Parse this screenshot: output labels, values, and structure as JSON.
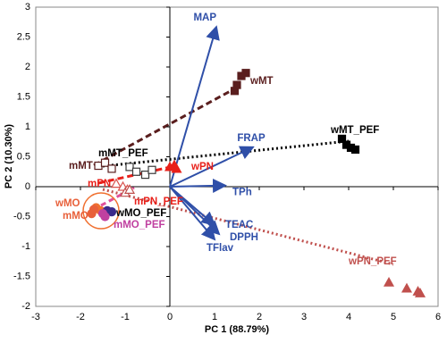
{
  "chart_data": {
    "type": "biplot",
    "x_label": "PC 1 (88.79%)",
    "y_label": "PC 2 (10.30%)",
    "xlim": [
      -3,
      6
    ],
    "xticks": [
      -3,
      -2,
      -1,
      0,
      1,
      2,
      3,
      4,
      5,
      6
    ],
    "ylim": [
      -2,
      3
    ],
    "yticks": [
      -2,
      -1.5,
      -1,
      -0.5,
      0,
      0.5,
      1,
      1.5,
      2,
      2.5,
      3
    ],
    "loading_color": "#2f4fa8",
    "loadings": [
      {
        "name": "MAP",
        "x": 1.04,
        "y": 2.67
      },
      {
        "name": "FRAP",
        "x": 1.86,
        "y": 0.66
      },
      {
        "name": "TPh",
        "x": 1.24,
        "y": 0.02
      },
      {
        "name": "TEAC",
        "x": 1.0,
        "y": -0.64
      },
      {
        "name": "DPPH",
        "x": 1.1,
        "y": -0.79
      },
      {
        "name": "TFlav",
        "x": 1.0,
        "y": -0.88
      }
    ],
    "series": [
      {
        "name": "mMT",
        "color": "#5a1e1e",
        "marker": "square",
        "filled": false,
        "x": [
          -1.6,
          -1.45,
          -1.3
        ],
        "y": [
          0.35,
          0.4,
          0.3
        ]
      },
      {
        "name": "mMT_PEF",
        "color": "#3a3a3a",
        "marker": "square",
        "filled": false,
        "x": [
          -0.9,
          -0.75,
          -0.55,
          -0.4
        ],
        "y": [
          0.33,
          0.25,
          0.2,
          0.28
        ]
      },
      {
        "name": "wMT",
        "color": "#5a1e1e",
        "marker": "square",
        "filled": true,
        "x": [
          1.45,
          1.5,
          1.6,
          1.7
        ],
        "y": [
          1.6,
          1.7,
          1.85,
          1.9
        ]
      },
      {
        "name": "wMT_PEF",
        "color": "#000000",
        "marker": "square",
        "filled": true,
        "x": [
          3.85,
          3.95,
          4.05,
          4.15
        ],
        "y": [
          0.8,
          0.7,
          0.65,
          0.62
        ]
      },
      {
        "name": "mPN",
        "color": "#d9534f",
        "marker": "triangle",
        "filled": false,
        "x": [
          -1.2,
          -1.05,
          -0.95
        ],
        "y": [
          0.05,
          0.0,
          -0.05
        ]
      },
      {
        "name": "wPN",
        "color": "#e8201a",
        "marker": "triangle",
        "filled": true,
        "x": [
          0.0,
          0.1,
          0.15
        ],
        "y": [
          0.33,
          0.36,
          0.3
        ]
      },
      {
        "name": "mPN_PEF",
        "color": "#c0504d",
        "marker": "triangle",
        "filled": false,
        "x": [
          -1.0,
          -0.9
        ],
        "y": [
          -0.1,
          -0.05
        ]
      },
      {
        "name": "wPN_PEF",
        "color": "#c0504d",
        "marker": "triangle",
        "filled": true,
        "x": [
          4.9,
          5.3,
          5.55,
          5.6
        ],
        "y": [
          -1.6,
          -1.7,
          -1.75,
          -1.78
        ]
      },
      {
        "name": "wMO",
        "color": "#f07030",
        "marker": "circle",
        "filled": true,
        "x": [
          -1.65,
          -1.55
        ],
        "y": [
          -0.35,
          -0.4
        ]
      },
      {
        "name": "mMO",
        "color": "#e8603a",
        "marker": "circle",
        "filled": true,
        "x": [
          -1.75,
          -1.7
        ],
        "y": [
          -0.45,
          -0.38
        ]
      },
      {
        "name": "wMO_PEF",
        "color": "#3a2a8a",
        "marker": "circle",
        "filled": true,
        "x": [
          -1.4,
          -1.3
        ],
        "y": [
          -0.4,
          -0.42
        ]
      },
      {
        "name": "mMO_PEF",
        "color": "#c040a0",
        "marker": "circle",
        "filled": true,
        "x": [
          -1.5,
          -1.45
        ],
        "y": [
          -0.45,
          -0.5
        ]
      }
    ]
  }
}
